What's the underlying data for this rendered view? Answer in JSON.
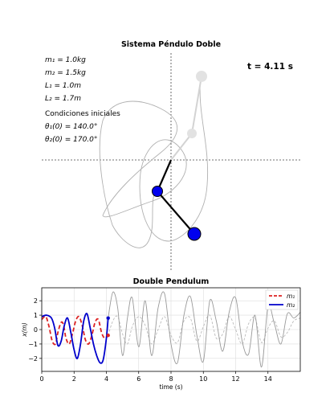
{
  "pendulum": {
    "title": "Sistema Péndulo Doble",
    "time_label": "t = 4.11 s",
    "params": {
      "m1": "m₁ = 1.0kg",
      "m2": "m₂ = 1.5kg",
      "L1": "L₁ = 1.0m",
      "L2": "L₂ = 1.7m",
      "conditions_heading": "Condiciones iniciales",
      "theta1": "θ₁(0) = 140.0°",
      "theta2": "θ₂(0) = 170.0°"
    },
    "colors": {
      "mass": "#0000ee",
      "rod": "#000000",
      "ghost": "#d3d3d3",
      "trace": "#b0b0b0"
    }
  },
  "chart_data": [
    {
      "type": "line",
      "title": "Double Pendulum",
      "xlabel": "time (s)",
      "ylabel": "x(m)",
      "xlim": [
        0,
        16
      ],
      "ylim": [
        -2.9,
        2.9
      ],
      "xticks": [
        0,
        2,
        4,
        6,
        8,
        10,
        12,
        14
      ],
      "yticks": [
        -2,
        -1,
        0,
        1,
        2
      ],
      "grid": true,
      "legend": "top-right",
      "current_time": 4.11,
      "series": [
        {
          "name": "m₁",
          "color": "#dd2222",
          "style": "dashed",
          "x": [
            0,
            0.25,
            0.45,
            0.65,
            0.85,
            1.0,
            1.2,
            1.35,
            1.5,
            1.7,
            1.9,
            2.1,
            2.3,
            2.5,
            2.7,
            2.9,
            3.1,
            3.3,
            3.5,
            3.7,
            3.9,
            4.11
          ],
          "y": [
            0.7,
            0.9,
            0.2,
            -0.8,
            -1.0,
            -0.2,
            0.5,
            0.3,
            -0.6,
            -1.0,
            -0.3,
            0.6,
            0.9,
            0.3,
            -0.7,
            -1.0,
            -0.4,
            0.5,
            0.7,
            -0.2,
            -0.6,
            -0.4
          ]
        },
        {
          "name": "m₂",
          "color": "#0000cc",
          "style": "solid",
          "x": [
            0,
            0.3,
            0.6,
            0.8,
            1.0,
            1.2,
            1.4,
            1.6,
            1.8,
            2.0,
            2.2,
            2.4,
            2.6,
            2.8,
            3.0,
            3.2,
            3.4,
            3.6,
            3.8,
            4.0,
            4.11
          ],
          "y": [
            0.9,
            1.0,
            0.8,
            0.1,
            -1.1,
            -0.8,
            0.3,
            0.8,
            -0.2,
            -1.4,
            -2.0,
            -1.0,
            0.6,
            1.1,
            0.1,
            -1.0,
            -1.8,
            -2.3,
            -2.1,
            -0.6,
            0.8
          ]
        }
      ],
      "preview_series": [
        {
          "of": "m₁",
          "color": "#bbbbbb",
          "style": "dashed",
          "x": [
            4.11,
            4.4,
            4.7,
            5.0,
            5.3,
            5.6,
            6.0,
            6.4,
            6.8,
            7.2,
            7.6,
            8.0,
            8.4,
            8.8,
            9.2,
            9.6,
            10.0,
            10.4,
            10.8,
            11.2,
            11.6,
            12.0,
            12.4,
            12.8,
            13.2,
            13.6,
            14.0,
            14.4,
            14.8,
            15.2,
            15.6,
            16.0
          ],
          "y": [
            -0.4,
            0.6,
            0.9,
            -0.3,
            -1.0,
            0.2,
            0.9,
            0.3,
            -1.0,
            0.0,
            0.9,
            -0.4,
            -0.9,
            0.6,
            0.8,
            -0.8,
            0.2,
            1.0,
            -0.6,
            -0.3,
            0.9,
            0.0,
            -1.0,
            0.4,
            0.8,
            -0.9,
            0.1,
            0.6,
            -0.5,
            -0.2,
            0.6,
            0.8
          ]
        },
        {
          "of": "m₂",
          "color": "#999999",
          "style": "solid",
          "x": [
            4.11,
            4.4,
            4.7,
            5.0,
            5.3,
            5.6,
            6.0,
            6.4,
            6.8,
            7.2,
            7.6,
            8.0,
            8.4,
            8.8,
            9.2,
            9.6,
            10.0,
            10.4,
            10.8,
            11.2,
            11.6,
            12.0,
            12.4,
            12.8,
            13.2,
            13.6,
            14.0,
            14.4,
            14.8,
            15.2,
            15.6,
            16.0
          ],
          "y": [
            0.8,
            2.6,
            1.5,
            -1.8,
            0.8,
            2.2,
            -1.2,
            2.0,
            -1.8,
            1.5,
            2.5,
            -1.0,
            -2.3,
            1.0,
            2.3,
            -0.4,
            -2.2,
            2.0,
            0.6,
            -1.5,
            1.2,
            2.2,
            -0.8,
            -1.7,
            1.0,
            -2.6,
            1.6,
            0.4,
            -1.0,
            1.1,
            0.8,
            1.2
          ]
        }
      ]
    }
  ]
}
